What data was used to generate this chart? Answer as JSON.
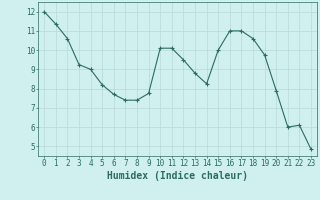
{
  "x": [
    0,
    1,
    2,
    3,
    4,
    5,
    6,
    7,
    8,
    9,
    10,
    11,
    12,
    13,
    14,
    15,
    16,
    17,
    18,
    19,
    20,
    21,
    22,
    23
  ],
  "y": [
    12.0,
    11.35,
    10.6,
    9.25,
    9.0,
    8.2,
    7.7,
    7.4,
    7.4,
    7.75,
    10.1,
    10.1,
    9.5,
    8.8,
    8.25,
    10.0,
    11.0,
    11.0,
    10.6,
    9.75,
    7.9,
    6.0,
    6.1,
    4.85
  ],
  "line_color": "#2d6b5e",
  "marker": "+",
  "marker_size": 3,
  "bg_color": "#cff0ee",
  "grid_color": "#b8d8d5",
  "xlabel": "Humidex (Indice chaleur)",
  "xlabel_color": "#2d6b5e",
  "tick_color": "#2d6b5e",
  "ylim": [
    4.5,
    12.5
  ],
  "xlim": [
    -0.5,
    23.5
  ],
  "yticks": [
    5,
    6,
    7,
    8,
    9,
    10,
    11,
    12
  ],
  "xticks": [
    0,
    1,
    2,
    3,
    4,
    5,
    6,
    7,
    8,
    9,
    10,
    11,
    12,
    13,
    14,
    15,
    16,
    17,
    18,
    19,
    20,
    21,
    22,
    23
  ],
  "font_size": 5.5,
  "label_font_size": 7
}
